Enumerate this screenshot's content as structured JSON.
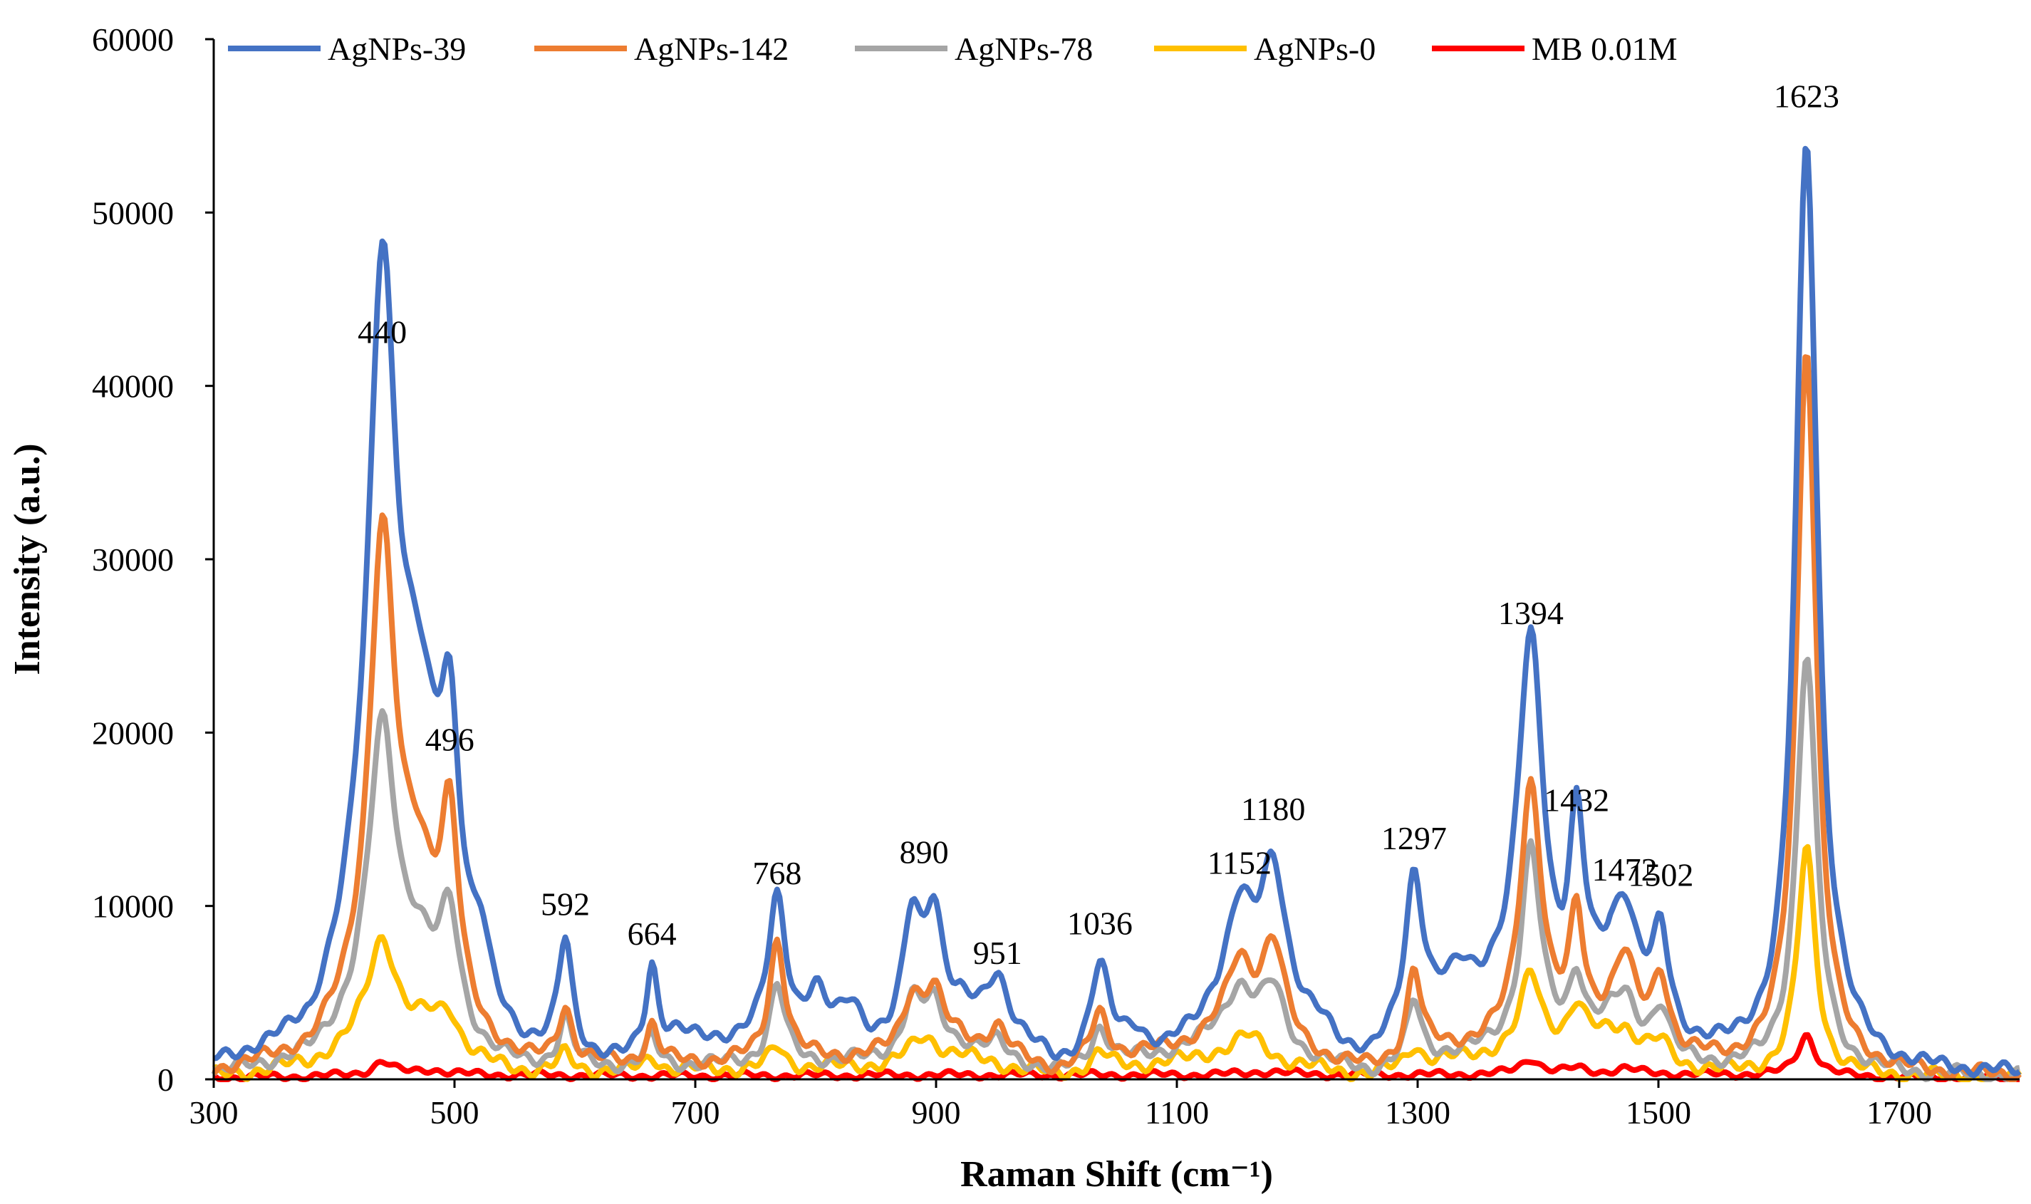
{
  "chart_data": {
    "type": "line",
    "title": "",
    "xlabel": "Raman Shift (cm⁻¹)",
    "ylabel": "Intensity (a.u.)",
    "xlim": [
      300,
      1800
    ],
    "ylim": [
      0,
      60000
    ],
    "grid": false,
    "legend_position": "top",
    "x_ticks": [
      "300",
      "500",
      "700",
      "900",
      "1100",
      "1300",
      "1500",
      "1700"
    ],
    "y_ticks": [
      "0",
      "10000",
      "20000",
      "30000",
      "40000",
      "50000",
      "60000"
    ],
    "peak_labels": [
      {
        "text": "440",
        "x": 440,
        "y": 40000
      },
      {
        "text": "496",
        "x": 496,
        "y": 16500
      },
      {
        "text": "592",
        "x": 592,
        "y": 7000
      },
      {
        "text": "664",
        "x": 664,
        "y": 5300
      },
      {
        "text": "768",
        "x": 768,
        "y": 8800
      },
      {
        "text": "890",
        "x": 890,
        "y": 10000
      },
      {
        "text": "951",
        "x": 951,
        "y": 4200
      },
      {
        "text": "1036",
        "x": 1036,
        "y": 5900
      },
      {
        "text": "1152",
        "x": 1152,
        "y": 9400
      },
      {
        "text": "1180",
        "x": 1180,
        "y": 12500
      },
      {
        "text": "1297",
        "x": 1297,
        "y": 10800
      },
      {
        "text": "1394",
        "x": 1394,
        "y": 23800
      },
      {
        "text": "1432",
        "x": 1432,
        "y": 13000
      },
      {
        "text": "1472",
        "x": 1472,
        "y": 9000
      },
      {
        "text": "1502",
        "x": 1502,
        "y": 8700
      },
      {
        "text": "1623",
        "x": 1623,
        "y": 53600
      }
    ],
    "series": [
      {
        "name": "AgNPs-39",
        "color": "#4472C4",
        "base": [
          [
            300,
            500
          ],
          [
            380,
            1500
          ],
          [
            420,
            5500
          ],
          [
            560,
            700
          ],
          [
            640,
            500
          ],
          [
            740,
            2000
          ],
          [
            820,
            2000
          ],
          [
            860,
            1500
          ],
          [
            920,
            3500
          ],
          [
            960,
            2500
          ],
          [
            1000,
            500
          ],
          [
            1090,
            1000
          ],
          [
            1130,
            3000
          ],
          [
            1260,
            500
          ],
          [
            1320,
            3500
          ],
          [
            1360,
            4000
          ],
          [
            1420,
            2000
          ],
          [
            1460,
            5000
          ],
          [
            1520,
            1500
          ],
          [
            1560,
            800
          ],
          [
            1700,
            300
          ],
          [
            1800,
            200
          ]
        ],
        "peaks": [
          [
            440,
            38500,
            14
          ],
          [
            470,
            14000,
            22
          ],
          [
            496,
            13000,
            10
          ],
          [
            522,
            3000,
            8
          ],
          [
            592,
            6500,
            7
          ],
          [
            664,
            5000,
            6
          ],
          [
            685,
            1000,
            15
          ],
          [
            768,
            8000,
            9
          ],
          [
            800,
            2500,
            10
          ],
          [
            830,
            2000,
            10
          ],
          [
            880,
            6500,
            9
          ],
          [
            898,
            6500,
            9
          ],
          [
            951,
            3000,
            10
          ],
          [
            1036,
            5300,
            10
          ],
          [
            1065,
            1500,
            12
          ],
          [
            1152,
            6000,
            14
          ],
          [
            1180,
            9500,
            14
          ],
          [
            1220,
            1000,
            15
          ],
          [
            1297,
            9000,
            9
          ],
          [
            1336,
            1500,
            12
          ],
          [
            1394,
            22000,
            13
          ],
          [
            1432,
            10500,
            8
          ],
          [
            1472,
            5000,
            12
          ],
          [
            1502,
            5000,
            8
          ],
          [
            1623,
            53000,
            11
          ],
          [
            1650,
            1000,
            15
          ]
        ]
      },
      {
        "name": "AgNPs-142",
        "color": "#ED7D31",
        "base": [
          [
            300,
            300
          ],
          [
            380,
            1000
          ],
          [
            420,
            3000
          ],
          [
            560,
            500
          ],
          [
            700,
            800
          ],
          [
            860,
            1200
          ],
          [
            920,
            2000
          ],
          [
            1000,
            400
          ],
          [
            1130,
            2000
          ],
          [
            1260,
            400
          ],
          [
            1320,
            1500
          ],
          [
            1420,
            2000
          ],
          [
            1460,
            3000
          ],
          [
            1520,
            1000
          ],
          [
            1560,
            600
          ],
          [
            1700,
            200
          ],
          [
            1800,
            150
          ]
        ],
        "peaks": [
          [
            440,
            27000,
            13
          ],
          [
            470,
            8000,
            20
          ],
          [
            496,
            11000,
            9
          ],
          [
            592,
            3200,
            7
          ],
          [
            664,
            2200,
            6
          ],
          [
            768,
            7000,
            8
          ],
          [
            880,
            3000,
            10
          ],
          [
            898,
            3000,
            10
          ],
          [
            951,
            1500,
            9
          ],
          [
            1036,
            2800,
            9
          ],
          [
            1152,
            4500,
            14
          ],
          [
            1180,
            6000,
            12
          ],
          [
            1297,
            5000,
            7
          ],
          [
            1394,
            15000,
            11
          ],
          [
            1432,
            6500,
            7
          ],
          [
            1472,
            4000,
            10
          ],
          [
            1502,
            4000,
            8
          ],
          [
            1623,
            42000,
            10
          ]
        ]
      },
      {
        "name": "AgNPs-78",
        "color": "#A5A5A5",
        "base": [
          [
            300,
            200
          ],
          [
            380,
            900
          ],
          [
            420,
            2500
          ],
          [
            560,
            400
          ],
          [
            700,
            700
          ],
          [
            860,
            1000
          ],
          [
            920,
            1800
          ],
          [
            1000,
            300
          ],
          [
            1130,
            1800
          ],
          [
            1260,
            300
          ],
          [
            1320,
            1200
          ],
          [
            1420,
            2000
          ],
          [
            1460,
            3000
          ],
          [
            1520,
            900
          ],
          [
            1560,
            500
          ],
          [
            1700,
            200
          ],
          [
            1800,
            150
          ]
        ],
        "peaks": [
          [
            440,
            17000,
            14
          ],
          [
            470,
            4500,
            20
          ],
          [
            496,
            6500,
            10
          ],
          [
            592,
            2800,
            7
          ],
          [
            664,
            1600,
            6
          ],
          [
            768,
            4500,
            8
          ],
          [
            880,
            3000,
            10
          ],
          [
            898,
            2500,
            10
          ],
          [
            951,
            800,
            9
          ],
          [
            1036,
            2200,
            9
          ],
          [
            1152,
            3500,
            16
          ],
          [
            1180,
            3500,
            12
          ],
          [
            1297,
            3500,
            7
          ],
          [
            1394,
            11500,
            10
          ],
          [
            1432,
            3500,
            7
          ],
          [
            1472,
            2000,
            10
          ],
          [
            1502,
            2500,
            8
          ],
          [
            1623,
            24000,
            10
          ]
        ]
      },
      {
        "name": "AgNPs-0",
        "color": "#FFC000",
        "base": [
          [
            300,
            100
          ],
          [
            380,
            700
          ],
          [
            420,
            1500
          ],
          [
            560,
            300
          ],
          [
            700,
            500
          ],
          [
            860,
            700
          ],
          [
            920,
            1200
          ],
          [
            1000,
            200
          ],
          [
            1130,
            1200
          ],
          [
            1260,
            200
          ],
          [
            1320,
            1000
          ],
          [
            1420,
            2000
          ],
          [
            1460,
            2500
          ],
          [
            1520,
            700
          ],
          [
            1560,
            300
          ],
          [
            1700,
            150
          ],
          [
            1800,
            100
          ]
        ],
        "peaks": [
          [
            440,
            6500,
            15
          ],
          [
            480,
            1800,
            20
          ],
          [
            496,
            1800,
            10
          ],
          [
            592,
            1000,
            7
          ],
          [
            664,
            800,
            7
          ],
          [
            768,
            1200,
            8
          ],
          [
            890,
            1500,
            15
          ],
          [
            1036,
            1000,
            10
          ],
          [
            1160,
            1500,
            18
          ],
          [
            1297,
            1200,
            8
          ],
          [
            1394,
            4300,
            10
          ],
          [
            1432,
            2000,
            8
          ],
          [
            1472,
            800,
            10
          ],
          [
            1502,
            900,
            8
          ],
          [
            1623,
            13000,
            9
          ]
        ]
      },
      {
        "name": "MB 0.01M",
        "color": "#FF0000",
        "base": [
          [
            300,
            100
          ],
          [
            500,
            250
          ],
          [
            700,
            200
          ],
          [
            900,
            250
          ],
          [
            1100,
            250
          ],
          [
            1300,
            250
          ],
          [
            1500,
            300
          ],
          [
            1700,
            100
          ],
          [
            1800,
            80
          ]
        ],
        "peaks": [
          [
            440,
            800,
            10
          ],
          [
            480,
            300,
            15
          ],
          [
            1175,
            200,
            20
          ],
          [
            1394,
            900,
            10
          ],
          [
            1432,
            300,
            10
          ],
          [
            1472,
            300,
            12
          ],
          [
            1623,
            2400,
            9
          ]
        ]
      }
    ]
  }
}
